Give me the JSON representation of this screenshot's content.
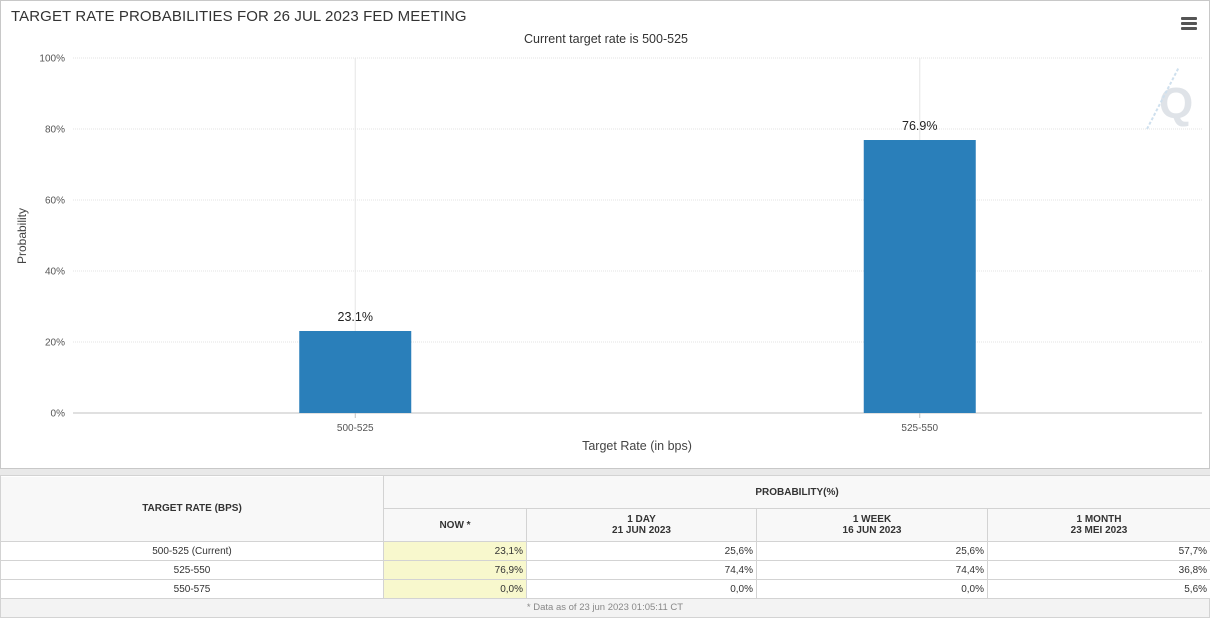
{
  "chart": {
    "title": "TARGET RATE PROBABILITIES FOR 26 JUL 2023 FED MEETING",
    "subtitle": "Current target rate is 500-525",
    "menu_icon": "hamburger-menu-icon",
    "watermark_icon": "quikstrike-q-logo-icon"
  },
  "chart_data": {
    "type": "bar",
    "categories": [
      "500-525",
      "525-550"
    ],
    "values": [
      23.1,
      76.9
    ],
    "data_labels": [
      "23.1%",
      "76.9%"
    ],
    "title": "TARGET RATE PROBABILITIES FOR 26 JUL 2023 FED MEETING",
    "subtitle": "Current target rate is 500-525",
    "xlabel": "Target Rate (in bps)",
    "ylabel": "Probability",
    "ylim": [
      0,
      100
    ],
    "yticks": [
      0,
      20,
      40,
      60,
      80,
      100
    ],
    "ytick_labels": [
      "0%",
      "20%",
      "40%",
      "60%",
      "80%",
      "100%"
    ],
    "grid": true,
    "bar_color": "#2a7fba"
  },
  "table": {
    "header_target": "TARGET RATE (BPS)",
    "header_probability": "PROBABILITY(%)",
    "columns": [
      {
        "line1": "NOW *",
        "line2": ""
      },
      {
        "line1": "1 DAY",
        "line2": "21 JUN 2023"
      },
      {
        "line1": "1 WEEK",
        "line2": "16 JUN 2023"
      },
      {
        "line1": "1 MONTH",
        "line2": "23 MEI 2023"
      }
    ],
    "rows": [
      {
        "rate": "500-525 (Current)",
        "values": [
          "23,1%",
          "25,6%",
          "25,6%",
          "57,7%"
        ]
      },
      {
        "rate": "525-550",
        "values": [
          "76,9%",
          "74,4%",
          "74,4%",
          "36,8%"
        ]
      },
      {
        "rate": "550-575",
        "values": [
          "0,0%",
          "0,0%",
          "0,0%",
          "5,6%"
        ]
      }
    ],
    "footnote": "* Data as of 23 jun 2023 01:05:11 CT",
    "now_highlight_color": "#f8f8cd"
  }
}
